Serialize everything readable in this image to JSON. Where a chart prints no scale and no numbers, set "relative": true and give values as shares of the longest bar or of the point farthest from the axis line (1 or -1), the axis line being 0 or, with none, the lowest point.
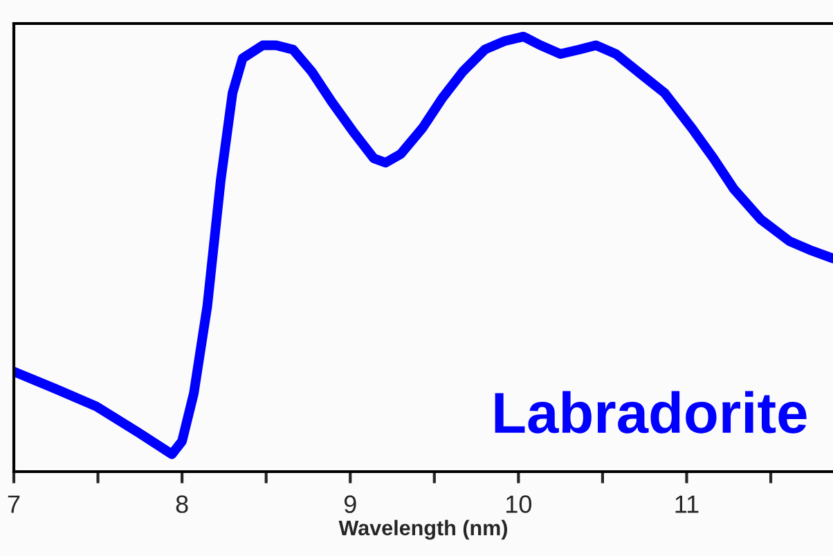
{
  "chart_data": {
    "type": "line",
    "xlabel": "Wavelength (nm)",
    "relative": true,
    "x": [
      7.0,
      7.25,
      7.49,
      7.74,
      7.94,
      8.0,
      8.07,
      8.15,
      8.23,
      8.3,
      8.36,
      8.48,
      8.56,
      8.66,
      8.77,
      8.89,
      9.02,
      9.14,
      9.21,
      9.3,
      9.43,
      9.55,
      9.67,
      9.8,
      9.92,
      10.03,
      10.13,
      10.25,
      10.36,
      10.46,
      10.58,
      10.74,
      10.87,
      11.03,
      11.16,
      11.28,
      11.44,
      11.61,
      11.73,
      11.87
    ],
    "series": [
      {
        "color": "#0000ff",
        "values": [
          0.23,
          0.19,
          0.15,
          0.09,
          0.04,
          0.07,
          0.18,
          0.38,
          0.67,
          0.87,
          0.95,
          0.98,
          0.98,
          0.97,
          0.92,
          0.85,
          0.78,
          0.72,
          0.71,
          0.73,
          0.79,
          0.86,
          0.92,
          0.97,
          0.99,
          1.0,
          0.98,
          0.96,
          0.97,
          0.98,
          0.96,
          0.91,
          0.87,
          0.79,
          0.72,
          0.65,
          0.58,
          0.53,
          0.51,
          0.49
        ]
      }
    ],
    "xlim": [
      7.0,
      11.87
    ],
    "xticks": [
      {
        "value": 7,
        "label": "7"
      },
      {
        "value": 7.5,
        "label": null
      },
      8,
      {
        "value": 8.5,
        "label": null
      },
      9,
      {
        "value": 9.5,
        "label": null
      },
      10,
      {
        "value": 10.5,
        "label": null
      },
      11,
      {
        "value": 11.5,
        "label": null
      }
    ],
    "tick_labels": "x",
    "grid": false,
    "legend": false,
    "marker": "none",
    "line_style": "solid",
    "annotations": [
      "Labradorite"
    ]
  }
}
